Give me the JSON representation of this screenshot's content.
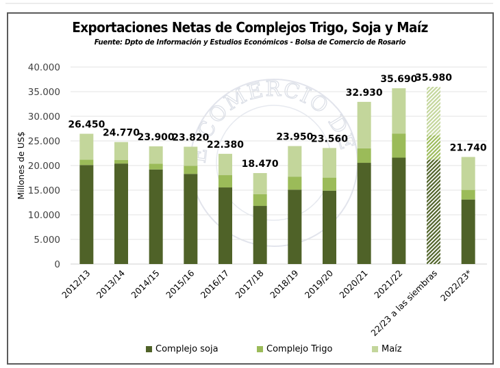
{
  "chart_data": {
    "type": "bar",
    "stacked": true,
    "title": "Exportaciones Netas de Complejos Trigo, Soja y Maíz",
    "subtitle": "Fuente: Dpto de Información y Estudios Económicos - Bolsa de Comercio de Rosario",
    "xlabel": "",
    "ylabel": "Millones de US$",
    "ylim": [
      0,
      40000
    ],
    "yticks": [
      0,
      5000,
      10000,
      15000,
      20000,
      25000,
      30000,
      35000,
      40000
    ],
    "ytick_labels": [
      "0",
      "5.000",
      "10.000",
      "15.000",
      "20.000",
      "25.000",
      "30.000",
      "35.000",
      "40.000"
    ],
    "grid": true,
    "legend_position": "bottom",
    "categories": [
      "2012/13",
      "2013/14",
      "2014/15",
      "2015/16",
      "2016/17",
      "2017/18",
      "2018/19",
      "2019/20",
      "2020/21",
      "2021/22",
      "22/23 a las siembras",
      "2022/23*"
    ],
    "hatched_categories": [
      "22/23 a las siembras"
    ],
    "series": [
      {
        "name": "Complejo soja",
        "color": "#4f6228",
        "values": [
          20100,
          20400,
          19200,
          18300,
          15550,
          11800,
          15100,
          14900,
          20550,
          21600,
          21200,
          13100
        ]
      },
      {
        "name": "Complejo Trigo",
        "color": "#9bbb59",
        "values": [
          1100,
          750,
          1150,
          1650,
          2500,
          2400,
          2650,
          2650,
          2950,
          4900,
          4950,
          1950
        ]
      },
      {
        "name": "Maíz",
        "color": "#c3d69b",
        "values": [
          5250,
          3620,
          3550,
          3870,
          4330,
          4270,
          6200,
          6010,
          9430,
          9190,
          9830,
          6690
        ]
      }
    ],
    "totals": [
      26450,
      24770,
      23900,
      23820,
      22380,
      18470,
      23950,
      23560,
      32930,
      35690,
      35980,
      21740
    ],
    "total_labels": [
      "26.450",
      "24.770",
      "23.900",
      "23.820",
      "22.380",
      "18.470",
      "23.950",
      "23.560",
      "32.930",
      "35.690",
      "35.980",
      "21.740"
    ]
  },
  "watermark": {
    "text": "BOLSA DE COMERCIO DE ROSARIO"
  }
}
